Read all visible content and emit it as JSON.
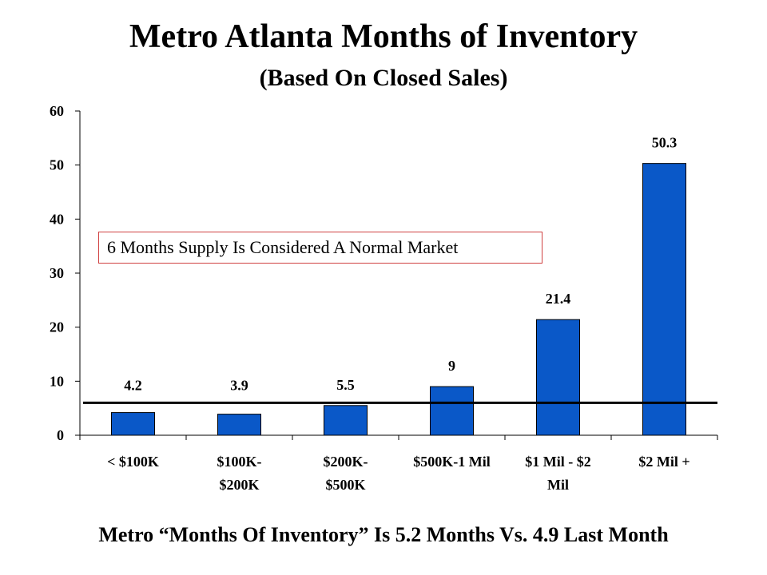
{
  "title": "Metro Atlanta Months of Inventory",
  "subtitle": "(Based On Closed Sales)",
  "callout": "6 Months Supply Is Considered A Normal Market",
  "footer": "Metro “Months Of Inventory” Is 5.2 Months Vs. 4.9 Last Month",
  "colors": {
    "bar": "#0a58c8",
    "bar_edge": "#000000",
    "reference_line": "#000000",
    "callout_border": "#d04040"
  },
  "chart_data": {
    "type": "bar",
    "categories": [
      [
        "< $100K"
      ],
      [
        "$100K-",
        "$200K"
      ],
      [
        "$200K-",
        "$500K"
      ],
      [
        "$500K-1 Mil"
      ],
      [
        "$1 Mil - $2",
        "Mil"
      ],
      [
        "$2 Mil +"
      ]
    ],
    "values": [
      4.2,
      3.9,
      5.5,
      9,
      21.4,
      50.3
    ],
    "data_labels": [
      "4.2",
      "3.9",
      "5.5",
      "9",
      "21.4",
      "50.3"
    ],
    "ylim": [
      0,
      60
    ],
    "yticks": [
      0,
      10,
      20,
      30,
      40,
      50,
      60
    ],
    "reference_line": 6,
    "grid": false,
    "legend": "none"
  }
}
